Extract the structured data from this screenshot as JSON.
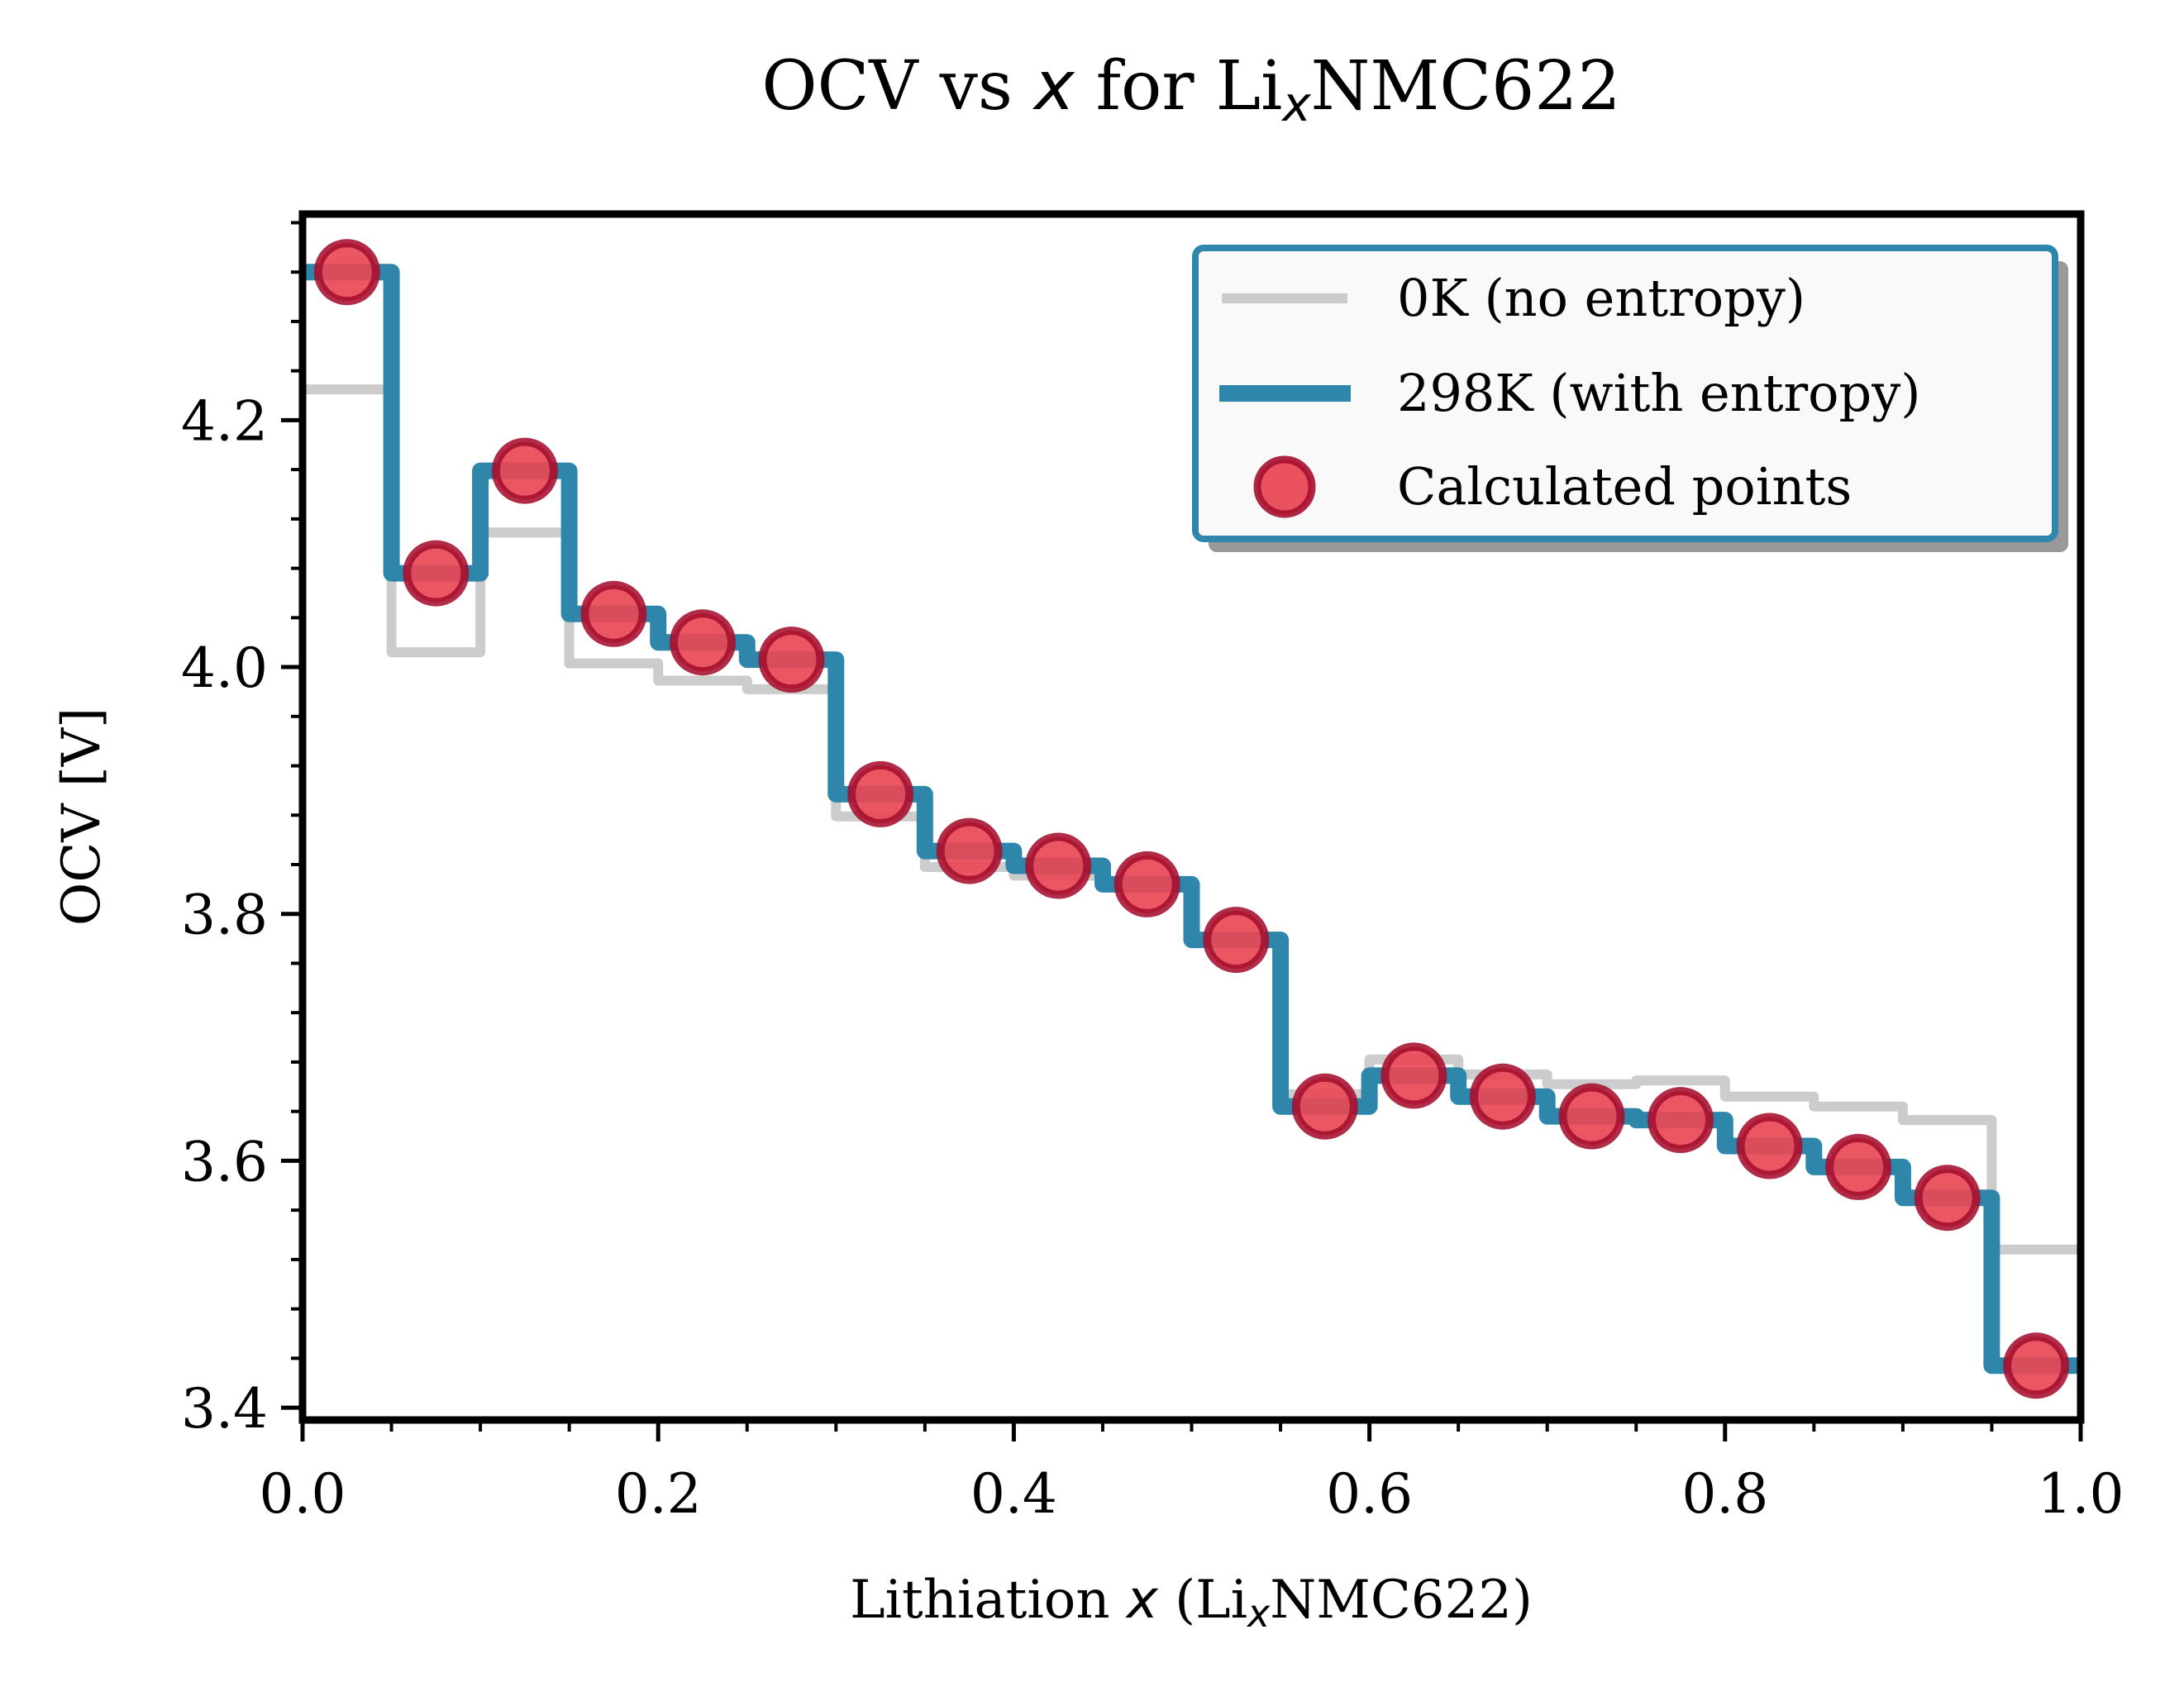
{
  "chart_data": {
    "type": "line",
    "title": {
      "prefix": "OCV vs ",
      "italic_var": "x",
      "middle": " for Li",
      "subscript": "x",
      "suffix": "NMC622"
    },
    "xlabel": {
      "prefix": "Lithiation ",
      "italic_var": "x",
      "middle": " (Li",
      "subscript": "x",
      "suffix": "NMC622)"
    },
    "ylabel": "OCV [V]",
    "xlim": [
      0.0,
      1.0
    ],
    "ylim": [
      3.39,
      4.367
    ],
    "x_ticks": [
      0.0,
      0.2,
      0.4,
      0.6,
      0.8,
      1.0
    ],
    "x_tick_labels": [
      "0.0",
      "0.2",
      "0.4",
      "0.6",
      "0.8",
      "1.0"
    ],
    "x_minor_step": 0.05,
    "y_ticks": [
      3.4,
      3.6,
      3.8,
      4.0,
      4.2
    ],
    "y_tick_labels": [
      "3.4",
      "3.6",
      "3.8",
      "4.0",
      "4.2"
    ],
    "y_minor_step": 0.04,
    "grid": false,
    "legend_position": "upper-right",
    "step_edges": [
      0.0,
      0.05,
      0.1,
      0.15,
      0.2,
      0.25,
      0.3,
      0.35,
      0.4,
      0.45,
      0.5,
      0.55,
      0.6,
      0.65,
      0.7,
      0.75,
      0.8,
      0.85,
      0.9,
      0.95,
      1.0
    ],
    "series": [
      {
        "name": "0K (no entropy)",
        "kind": "step",
        "color": "#cccccc",
        "values": [
          4.225,
          4.012,
          4.109,
          4.003,
          3.989,
          3.982,
          3.879,
          3.838,
          3.831,
          3.824,
          3.779,
          3.654,
          3.682,
          3.67,
          3.662,
          3.665,
          3.652,
          3.644,
          3.633,
          3.528
        ]
      },
      {
        "name": "298K (with entropy)",
        "kind": "step",
        "color": "#2e86ab",
        "values": [
          4.32,
          4.076,
          4.159,
          4.043,
          4.02,
          4.006,
          3.897,
          3.851,
          3.839,
          3.824,
          3.779,
          3.644,
          3.669,
          3.652,
          3.636,
          3.633,
          3.612,
          3.595,
          3.57,
          3.434
        ]
      },
      {
        "name": "Calculated points",
        "kind": "scatter",
        "color": "#e84855",
        "edge_color": "#a50f2d",
        "x": [
          0.025,
          0.075,
          0.125,
          0.175,
          0.225,
          0.275,
          0.325,
          0.375,
          0.425,
          0.475,
          0.525,
          0.575,
          0.625,
          0.675,
          0.725,
          0.775,
          0.825,
          0.875,
          0.925,
          0.975
        ],
        "y": [
          4.32,
          4.076,
          4.159,
          4.043,
          4.02,
          4.006,
          3.897,
          3.851,
          3.839,
          3.824,
          3.779,
          3.644,
          3.669,
          3.652,
          3.636,
          3.633,
          3.612,
          3.595,
          3.57,
          3.434
        ]
      }
    ],
    "legend": {
      "entries": [
        "0K (no entropy)",
        "298K (with entropy)",
        "Calculated points"
      ],
      "border_color": "#2e86ab",
      "background": "#f9f9f9",
      "shadow_color": "#999999"
    }
  }
}
